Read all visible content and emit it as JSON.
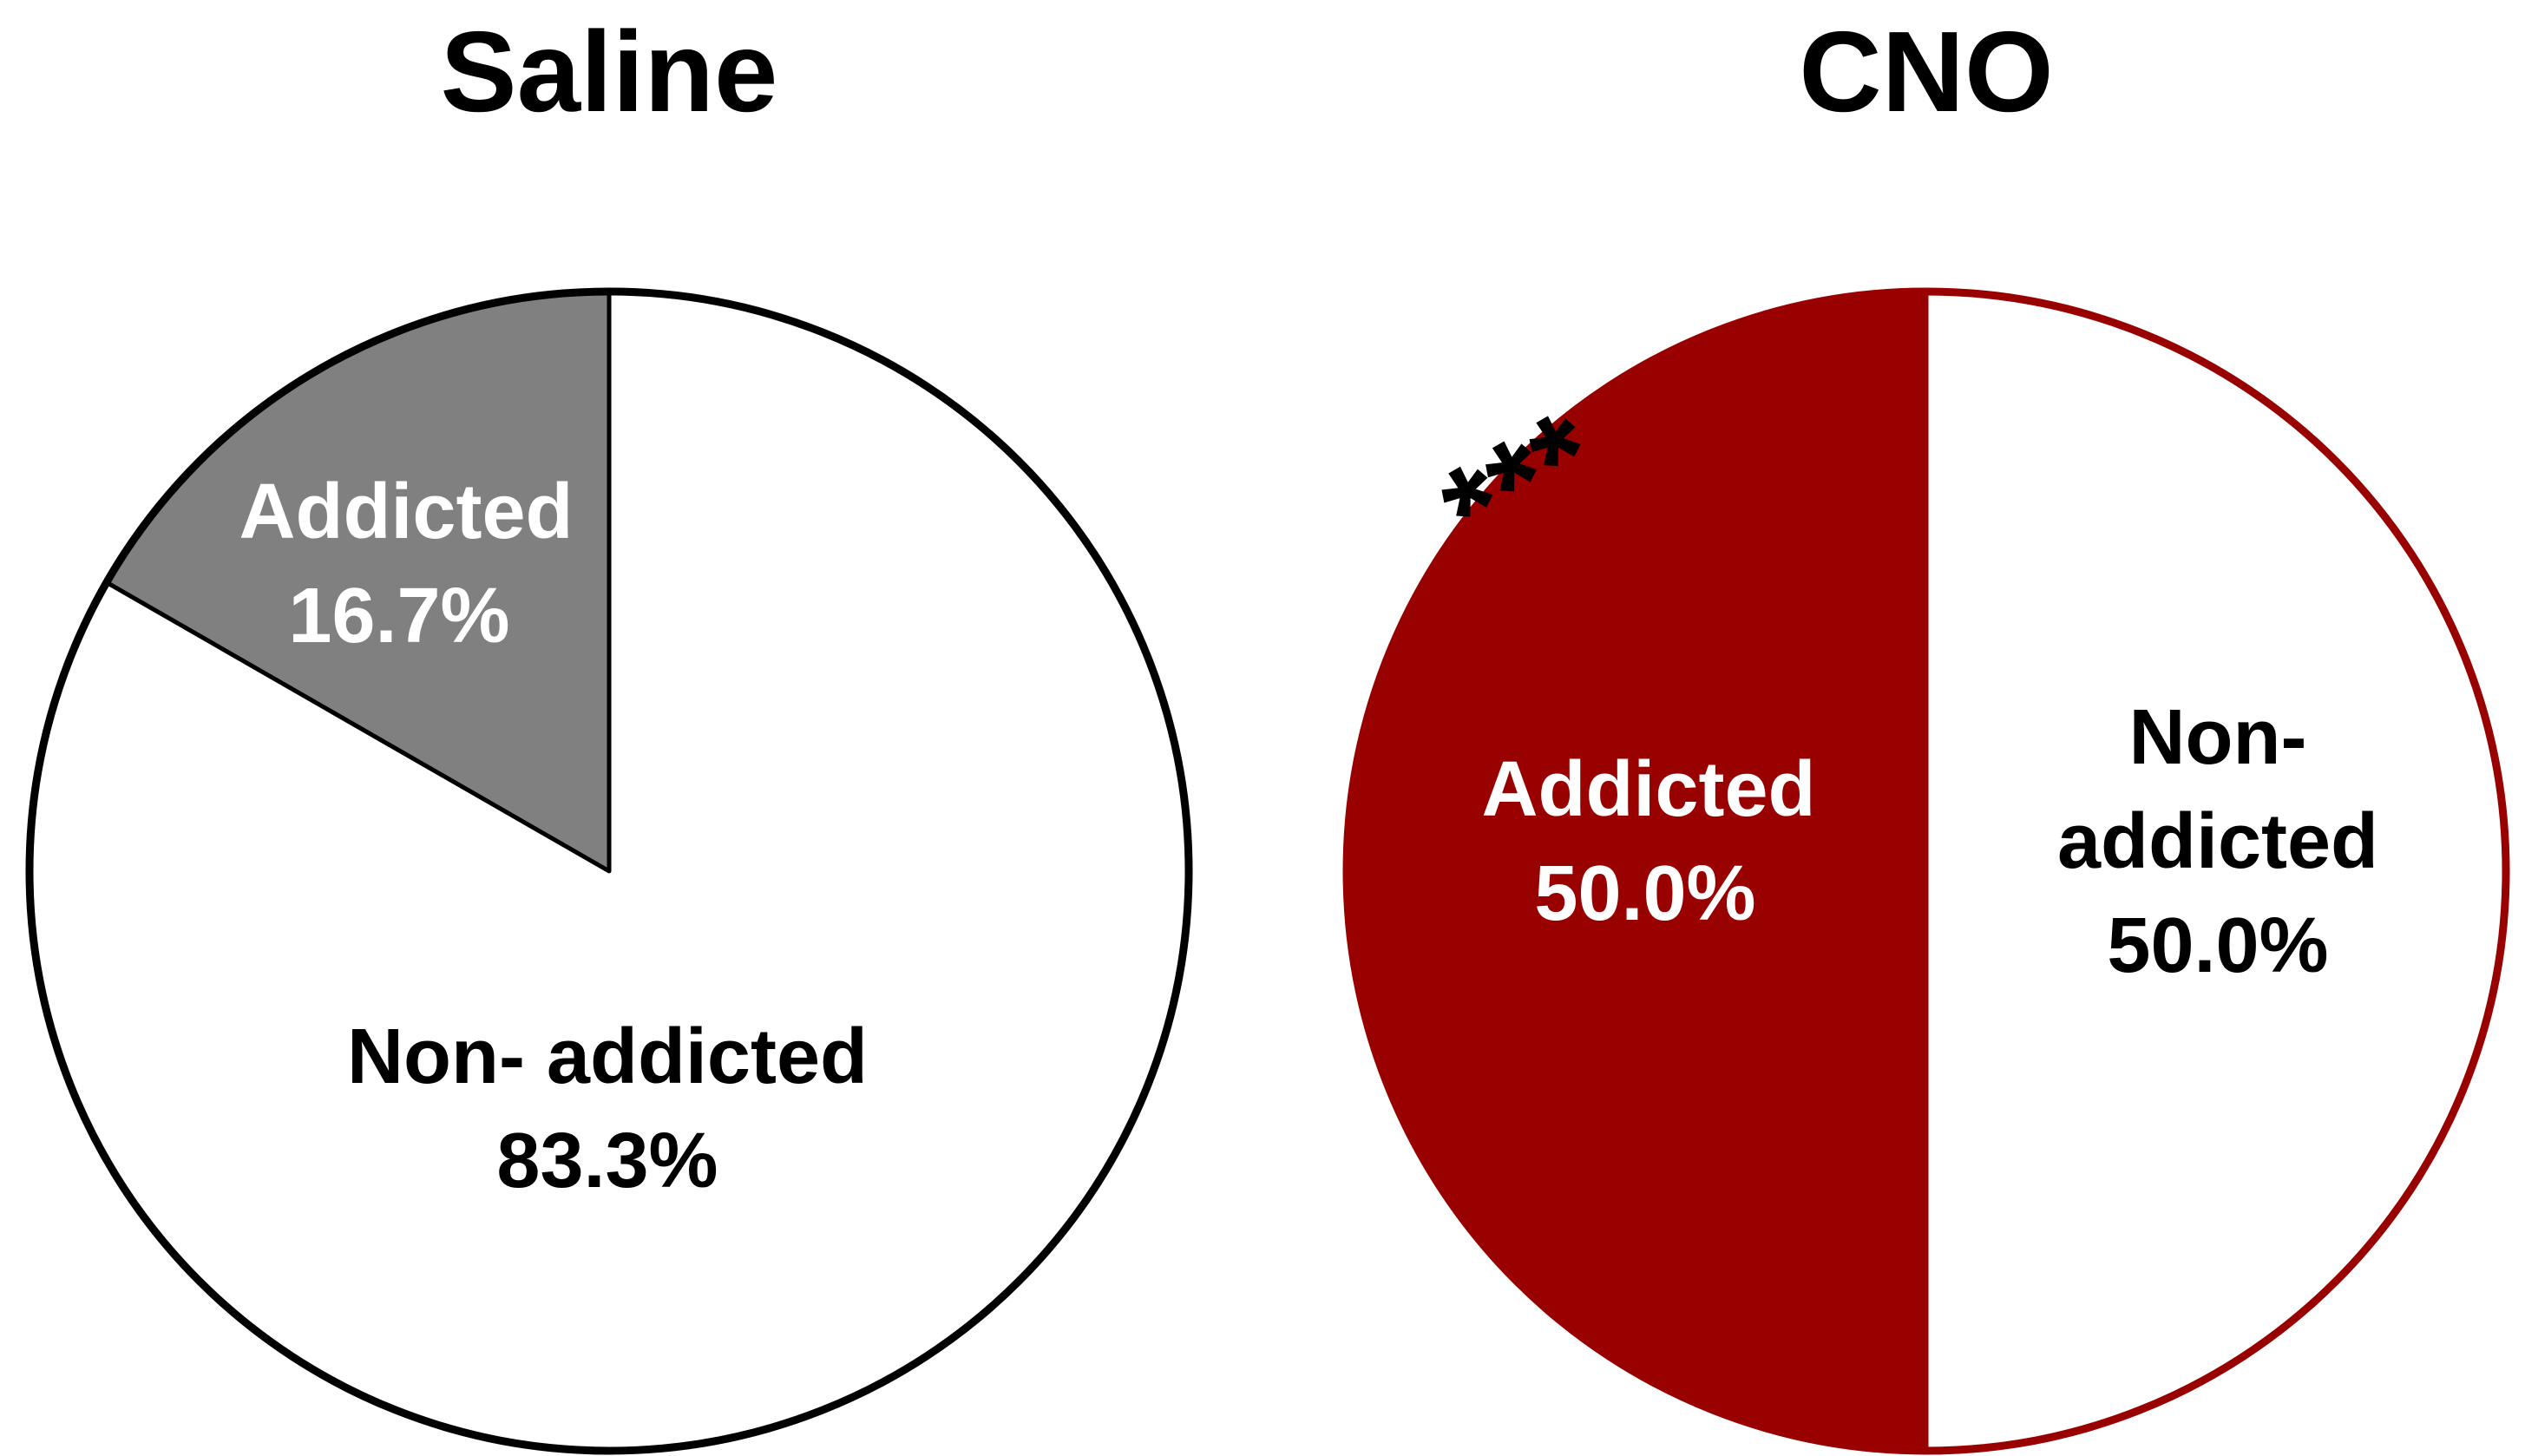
{
  "chart_data": [
    {
      "type": "pie",
      "title": "Saline",
      "outline_color": "#000000",
      "slices": [
        {
          "label_line1": "Addicted",
          "label_line2": "16.7%",
          "value": 16.7,
          "color": "#808080",
          "text_color": "#ffffff"
        },
        {
          "label_line1": "Non- addicted",
          "label_line2": "83.3%",
          "value": 83.3,
          "color": "#ffffff",
          "text_color": "#000000"
        }
      ]
    },
    {
      "type": "pie",
      "title": "CNO",
      "outline_color": "#990000",
      "annotation": "***",
      "slices": [
        {
          "label_line1": "Addicted",
          "label_line2": "50.0%",
          "value": 50.0,
          "color": "#990000",
          "text_color": "#ffffff"
        },
        {
          "label_line1": "Non-",
          "label_line1b": "addicted",
          "label_line2": "50.0%",
          "value": 50.0,
          "color": "#ffffff",
          "text_color": "#000000"
        }
      ]
    }
  ]
}
